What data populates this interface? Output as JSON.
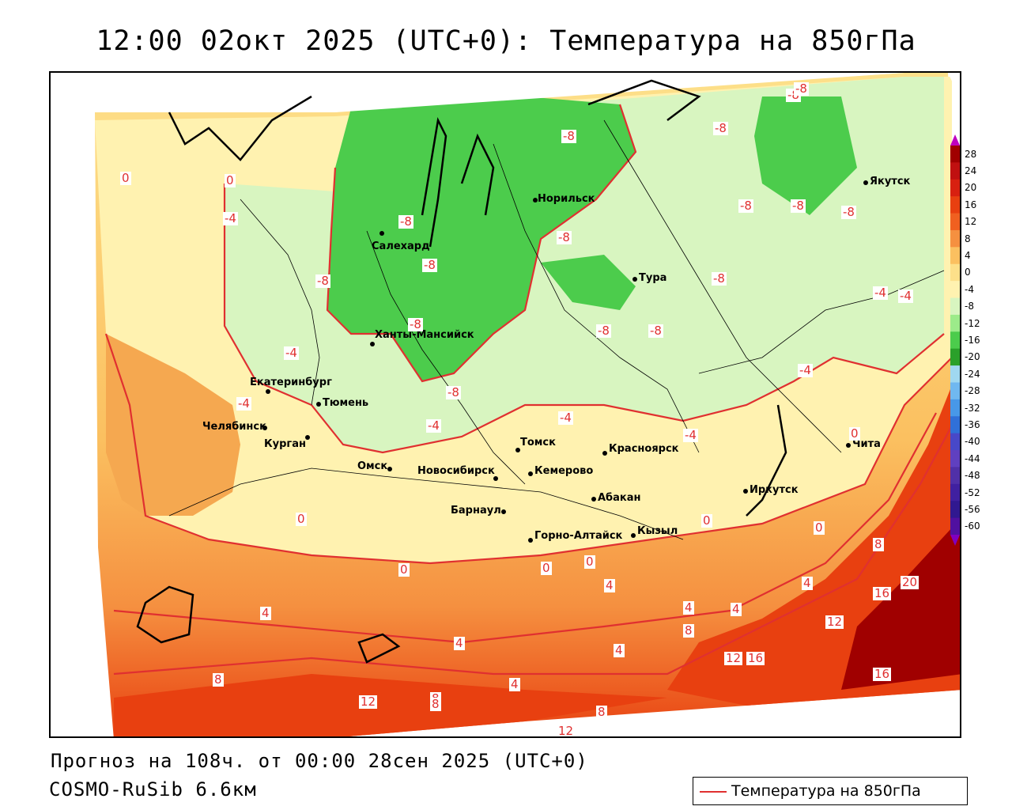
{
  "title": "12:00 02окт 2025 (UTC+0): Температура на 850гПа",
  "forecast_info": "Прогноз на 108ч. от 00:00 28сен 2025 (UTC+0)",
  "model": "COSMO-RuSib 6.6км",
  "legend_label": "Температура на 850гПа",
  "colorbar": {
    "labels": [
      "28",
      "24",
      "20",
      "16",
      "12",
      "8",
      "4",
      "0",
      "-4",
      "-8",
      "-12",
      "-16",
      "-20",
      "-24",
      "-28",
      "-32",
      "-36",
      "-40",
      "-44",
      "-48",
      "-52",
      "-56",
      "-60"
    ],
    "colors": [
      "#a00000",
      "#c01010",
      "#d82010",
      "#e84010",
      "#f06020",
      "#f59040",
      "#fbc060",
      "#fde08a",
      "#fff2b0",
      "#d8f5c0",
      "#9ceb8a",
      "#4ccc4c",
      "#2aa02a",
      "#a0d8f0",
      "#70b8f0",
      "#4898e8",
      "#3070d8",
      "#4848c8",
      "#6040c0",
      "#5030a8",
      "#4020a0",
      "#301890",
      "#5010a0"
    ],
    "top_arrow_color": "#c000c0",
    "bottom_arrow_color": "#8000c0"
  },
  "cities": [
    {
      "name": "Салехард"
    },
    {
      "name": "Норильск"
    },
    {
      "name": "Якутск"
    },
    {
      "name": "Тура"
    },
    {
      "name": "Ханты-Мансийск"
    },
    {
      "name": "Екатеринбург"
    },
    {
      "name": "Тюмень"
    },
    {
      "name": "Челябинск"
    },
    {
      "name": "Курган"
    },
    {
      "name": "Омск"
    },
    {
      "name": "Новосибирск"
    },
    {
      "name": "Томск"
    },
    {
      "name": "Кемерово"
    },
    {
      "name": "Красноярск"
    },
    {
      "name": "Абакан"
    },
    {
      "name": "Барнаул"
    },
    {
      "name": "Горно-Алтайск"
    },
    {
      "name": "Кызыл"
    },
    {
      "name": "Иркутск"
    },
    {
      "name": "Чита"
    }
  ],
  "isotherm_labels": [
    "-8",
    "-8",
    "-8",
    "-8",
    "-8",
    "-8",
    "-8",
    "-8",
    "-8",
    "-8",
    "-8",
    "-8",
    "-8",
    "-8",
    "-8",
    "-8",
    "-4",
    "-4",
    "-4",
    "-4",
    "-4",
    "-4",
    "-4",
    "-4",
    "-4",
    "0",
    "0",
    "0",
    "0",
    "0",
    "0",
    "0",
    "0",
    "0",
    "4",
    "4",
    "4",
    "4",
    "4",
    "4",
    "4",
    "4",
    "8",
    "8",
    "8",
    "8",
    "8",
    "8",
    "12",
    "12",
    "12",
    "12",
    "16",
    "16",
    "16",
    "20"
  ]
}
